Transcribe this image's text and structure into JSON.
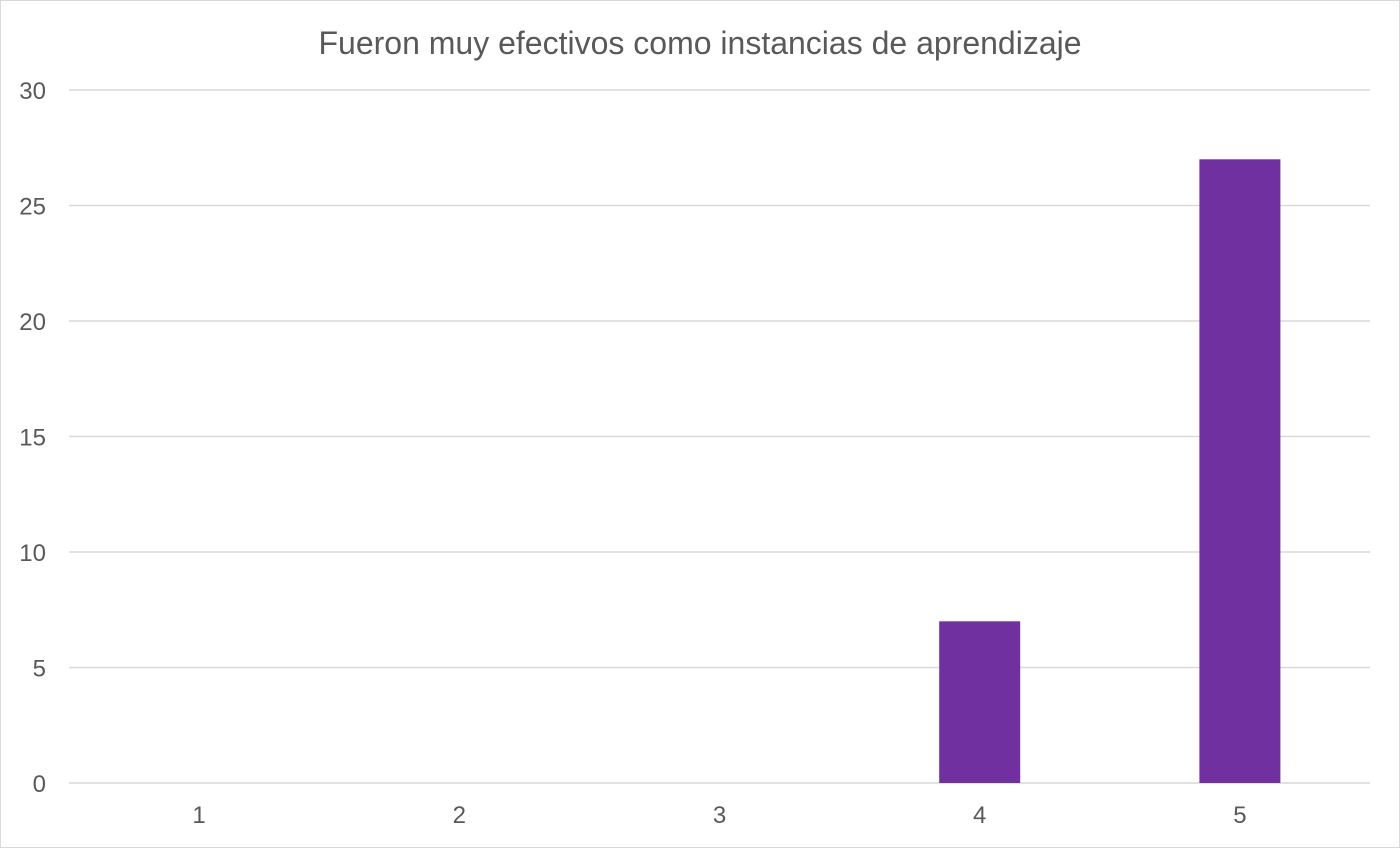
{
  "chart_data": {
    "type": "bar",
    "title": "Fueron muy efectivos como instancias de aprendizaje",
    "xlabel": "",
    "ylabel": "",
    "categories": [
      "1",
      "2",
      "3",
      "4",
      "5"
    ],
    "values": [
      0,
      0,
      0,
      7,
      27
    ],
    "ylim": [
      0,
      30
    ],
    "yticks": [
      0,
      5,
      10,
      15,
      20,
      25,
      30
    ],
    "grid": true,
    "legend": "none",
    "bar_color": "#7030a0",
    "gridline_color": "#d9d9d9",
    "text_color": "#595959"
  }
}
